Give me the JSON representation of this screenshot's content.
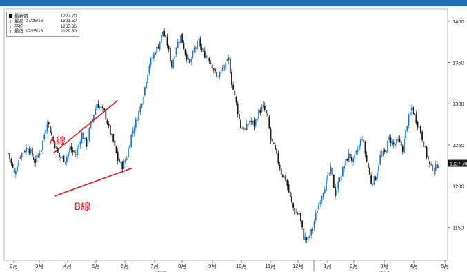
{
  "banner": {
    "title": ""
  },
  "legend": {
    "title": "最新價",
    "last_value": "1227.70",
    "items": [
      {
        "label": "最高",
        "date": "07/06/16",
        "value": "1391.50"
      },
      {
        "label": "平均",
        "date": "",
        "value": "1265.66"
      },
      {
        "label": "最低",
        "date": "12/15/16",
        "value": "1129.80"
      }
    ]
  },
  "colors": {
    "up": "#1e78c8",
    "down": "#1a1a1a",
    "trend": "#e8141c",
    "tag_bg": "#1a1a1a",
    "banner": "#1f6fb0"
  },
  "chart_data": {
    "type": "candlestick",
    "x_tick_labels": [
      "2月",
      "3月",
      "4月",
      "5月",
      "6月",
      "7月",
      "8月",
      "9月",
      "10月",
      "11月",
      "12月",
      "1月",
      "2月",
      "3月",
      "4月",
      "5月"
    ],
    "year_labels": [
      "2016",
      "2017"
    ],
    "y_ticks": [
      1150,
      1200,
      1250,
      1300,
      1350,
      1400
    ],
    "ylim": [
      1110,
      1415
    ],
    "last_price_tag": "1227.70",
    "approx_path": [
      [
        0,
        1240
      ],
      [
        4,
        1215
      ],
      [
        8,
        1238
      ],
      [
        13,
        1248
      ],
      [
        18,
        1230
      ],
      [
        22,
        1246
      ],
      [
        26,
        1280
      ],
      [
        30,
        1255
      ],
      [
        34,
        1235
      ],
      [
        38,
        1232
      ],
      [
        41,
        1245
      ],
      [
        45,
        1238
      ],
      [
        49,
        1264
      ],
      [
        52,
        1250
      ],
      [
        55,
        1276
      ],
      [
        59,
        1300
      ],
      [
        64,
        1290
      ],
      [
        67,
        1270
      ],
      [
        70,
        1254
      ],
      [
        73,
        1232
      ],
      [
        76,
        1224
      ],
      [
        79,
        1236
      ],
      [
        82,
        1262
      ],
      [
        85,
        1278
      ],
      [
        88,
        1296
      ],
      [
        91,
        1320
      ],
      [
        94,
        1348
      ],
      [
        97,
        1360
      ],
      [
        100,
        1370
      ],
      [
        103,
        1388
      ],
      [
        106,
        1372
      ],
      [
        109,
        1346
      ],
      [
        112,
        1370
      ],
      [
        115,
        1382
      ],
      [
        118,
        1362
      ],
      [
        121,
        1348
      ],
      [
        124,
        1366
      ],
      [
        127,
        1376
      ],
      [
        130,
        1360
      ],
      [
        133,
        1358
      ],
      [
        136,
        1346
      ],
      [
        139,
        1332
      ],
      [
        142,
        1340
      ],
      [
        145,
        1346
      ],
      [
        147,
        1354
      ],
      [
        149,
        1326
      ],
      [
        152,
        1300
      ],
      [
        155,
        1272
      ],
      [
        158,
        1268
      ],
      [
        161,
        1280
      ],
      [
        164,
        1274
      ],
      [
        167,
        1290
      ],
      [
        170,
        1296
      ],
      [
        173,
        1282
      ],
      [
        175,
        1256
      ],
      [
        177,
        1248
      ],
      [
        179,
        1236
      ],
      [
        182,
        1216
      ],
      [
        185,
        1208
      ],
      [
        188,
        1185
      ],
      [
        191,
        1168
      ],
      [
        194,
        1166
      ],
      [
        197,
        1138
      ],
      [
        200,
        1135
      ],
      [
        203,
        1150
      ],
      [
        206,
        1172
      ],
      [
        209,
        1190
      ],
      [
        212,
        1205
      ],
      [
        215,
        1220
      ],
      [
        218,
        1190
      ],
      [
        221,
        1210
      ],
      [
        224,
        1225
      ],
      [
        227,
        1238
      ],
      [
        230,
        1230
      ],
      [
        233,
        1244
      ],
      [
        236,
        1260
      ],
      [
        239,
        1230
      ],
      [
        242,
        1205
      ],
      [
        245,
        1210
      ],
      [
        248,
        1236
      ],
      [
        251,
        1240
      ],
      [
        254,
        1258
      ],
      [
        257,
        1250
      ],
      [
        260,
        1255
      ],
      [
        263,
        1245
      ],
      [
        266,
        1276
      ],
      [
        269,
        1295
      ],
      [
        272,
        1280
      ],
      [
        275,
        1266
      ],
      [
        278,
        1244
      ],
      [
        281,
        1225
      ],
      [
        284,
        1220
      ],
      [
        287,
        1227.7
      ]
    ],
    "trend_lines": [
      {
        "label": "A線",
        "from": [
          1.5,
          1240
        ],
        "to": [
          3.75,
          1304
        ]
      },
      {
        "label": "B線",
        "from": [
          1.55,
          1188
        ],
        "to": [
          4.25,
          1222
        ]
      }
    ]
  }
}
